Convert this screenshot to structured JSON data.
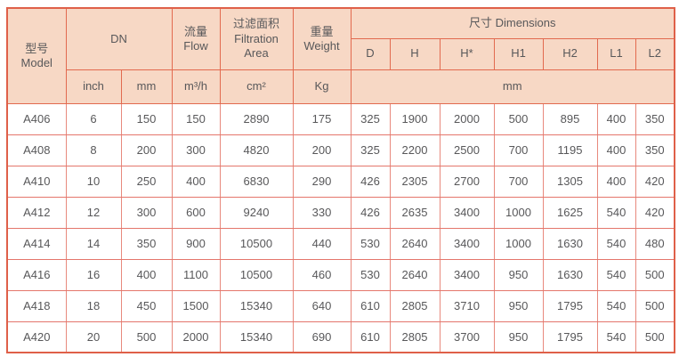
{
  "table": {
    "header": {
      "model": "型号\nModel",
      "dn": "DN",
      "flow": "流量\nFlow",
      "filtration_area": "过滤面积\nFiltration\nArea",
      "weight": "重量\nWeight",
      "dimensions": "尺寸 Dimensions",
      "dim_cols": [
        "D",
        "H",
        "H*",
        "H1",
        "H2",
        "L1",
        "L2"
      ],
      "units": {
        "dn_inch": "inch",
        "dn_mm": "mm",
        "flow": "m³/h",
        "area": "cm²",
        "weight": "Kg",
        "dimensions": "mm"
      }
    },
    "columns_order": [
      "model",
      "dn_inch",
      "dn_mm",
      "flow",
      "filtration_area",
      "weight",
      "D",
      "H",
      "H*",
      "H1",
      "H2",
      "L1",
      "L2"
    ],
    "rows": [
      [
        "A406",
        "6",
        "150",
        "150",
        "2890",
        "175",
        "325",
        "1900",
        "2000",
        "500",
        "895",
        "400",
        "350"
      ],
      [
        "A408",
        "8",
        "200",
        "300",
        "4820",
        "200",
        "325",
        "2200",
        "2500",
        "700",
        "1195",
        "400",
        "350"
      ],
      [
        "A410",
        "10",
        "250",
        "400",
        "6830",
        "290",
        "426",
        "2305",
        "2700",
        "700",
        "1305",
        "400",
        "420"
      ],
      [
        "A412",
        "12",
        "300",
        "600",
        "9240",
        "330",
        "426",
        "2635",
        "3400",
        "1000",
        "1625",
        "540",
        "420"
      ],
      [
        "A414",
        "14",
        "350",
        "900",
        "10500",
        "440",
        "530",
        "2640",
        "3400",
        "1000",
        "1630",
        "540",
        "480"
      ],
      [
        "A416",
        "16",
        "400",
        "1100",
        "10500",
        "460",
        "530",
        "2640",
        "3400",
        "950",
        "1630",
        "540",
        "500"
      ],
      [
        "A418",
        "18",
        "450",
        "1500",
        "15340",
        "640",
        "610",
        "2805",
        "3710",
        "950",
        "1795",
        "540",
        "500"
      ],
      [
        "A420",
        "20",
        "500",
        "2000",
        "15340",
        "690",
        "610",
        "2805",
        "3700",
        "950",
        "1795",
        "540",
        "500"
      ]
    ]
  },
  "colors": {
    "header_background": "#f7d8c5",
    "outer_border": "#df6049",
    "header_border": "#e26a4f",
    "body_border": "#e8897d",
    "text": "#58585a"
  }
}
